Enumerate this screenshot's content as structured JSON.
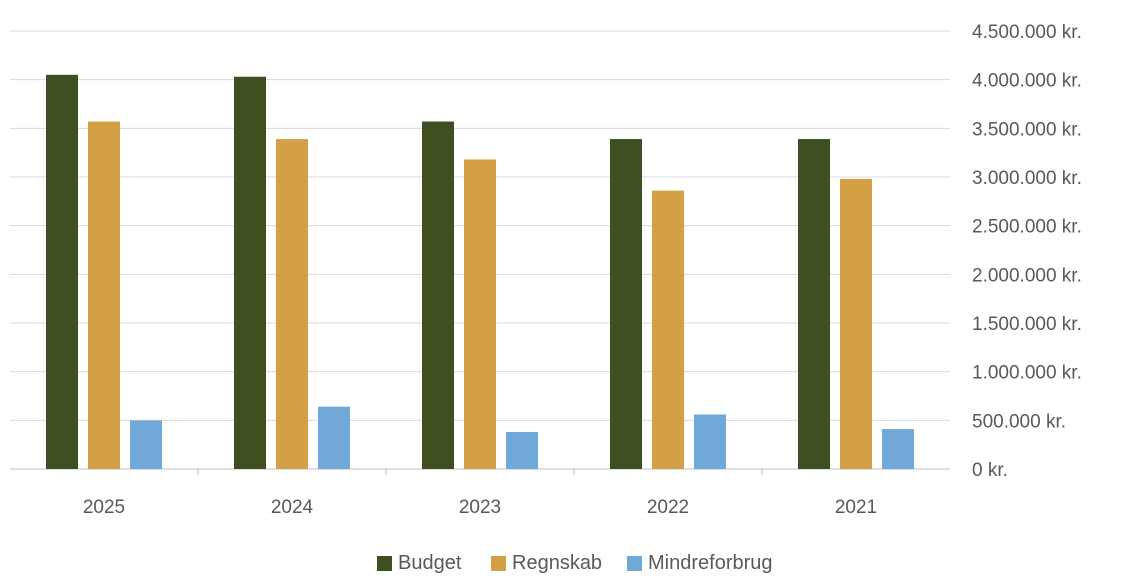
{
  "chart_data": {
    "type": "bar",
    "categories": [
      "2025",
      "2024",
      "2023",
      "2022",
      "2021"
    ],
    "series": [
      {
        "name": "Budget",
        "color": "#3e4f22",
        "values": [
          4050000,
          4030000,
          3570000,
          3390000,
          3390000
        ]
      },
      {
        "name": "Regnskab",
        "color": "#d4a046",
        "values": [
          3570000,
          3390000,
          3180000,
          2860000,
          2980000
        ]
      },
      {
        "name": "Mindreforbrug",
        "color": "#70a8d8",
        "values": [
          500000,
          640000,
          380000,
          560000,
          410000
        ]
      }
    ],
    "ylim": [
      0,
      4500000
    ],
    "y_ticks": [
      {
        "value": 4500000,
        "label": "4.500.000 kr."
      },
      {
        "value": 4000000,
        "label": "4.000.000 kr."
      },
      {
        "value": 3500000,
        "label": "3.500.000 kr."
      },
      {
        "value": 3000000,
        "label": "3.000.000 kr."
      },
      {
        "value": 2500000,
        "label": "2.500.000 kr."
      },
      {
        "value": 2000000,
        "label": "2.000.000 kr."
      },
      {
        "value": 1500000,
        "label": "1.500.000 kr."
      },
      {
        "value": 1000000,
        "label": "1.000.000 kr."
      },
      {
        "value": 500000,
        "label": "500.000 kr."
      },
      {
        "value": 0,
        "label": "0 kr."
      }
    ],
    "y_axis_side": "right",
    "grid": true,
    "legend_position": "bottom-center"
  }
}
